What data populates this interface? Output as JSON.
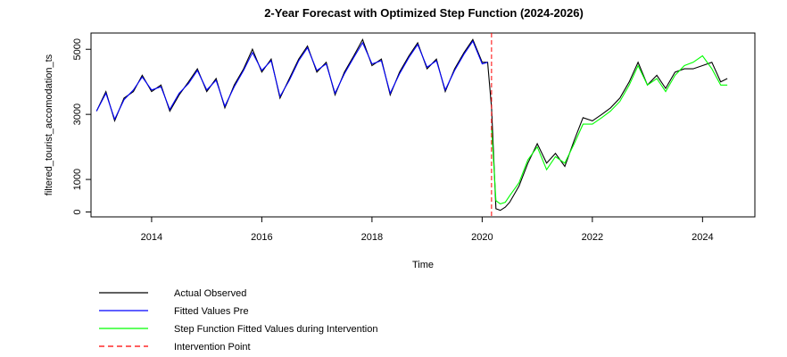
{
  "chart_data": {
    "type": "line",
    "title": "2-Year Forecast with Optimized Step Function (2024-2026)",
    "xlabel": "Time",
    "ylabel": "filtered_tourist_accomodation_ts",
    "xlim": [
      2012.9,
      2024.95
    ],
    "ylim": [
      -150,
      5500
    ],
    "x_ticks": [
      2014,
      2016,
      2018,
      2020,
      2022,
      2024
    ],
    "y_ticks": [
      0,
      1000,
      3000,
      5000
    ],
    "intervention_x": 2020.17,
    "colors": {
      "actual": "#000000",
      "fitted_pre": "#0000ff",
      "step": "#00ff00",
      "intervention": "#ff0000"
    },
    "legend": [
      {
        "key": "actual",
        "label": "Actual Observed"
      },
      {
        "key": "fitted_pre",
        "label": "Fitted Values Pre"
      },
      {
        "key": "step",
        "label": "Step Function Fitted Values during Intervention"
      },
      {
        "key": "intervention",
        "label": "Intervention Point"
      }
    ],
    "series": [
      {
        "key": "actual",
        "x": [
          2013.0,
          2013.17,
          2013.33,
          2013.5,
          2013.67,
          2013.83,
          2014.0,
          2014.17,
          2014.33,
          2014.5,
          2014.67,
          2014.83,
          2015.0,
          2015.17,
          2015.33,
          2015.5,
          2015.67,
          2015.83,
          2016.0,
          2016.17,
          2016.33,
          2016.5,
          2016.67,
          2016.83,
          2017.0,
          2017.17,
          2017.33,
          2017.5,
          2017.67,
          2017.83,
          2018.0,
          2018.17,
          2018.33,
          2018.5,
          2018.67,
          2018.83,
          2019.0,
          2019.17,
          2019.33,
          2019.5,
          2019.67,
          2019.83,
          2020.0,
          2020.1,
          2020.17,
          2020.25,
          2020.33,
          2020.42,
          2020.5,
          2020.67,
          2020.83,
          2021.0,
          2021.17,
          2021.33,
          2021.5,
          2021.67,
          2021.83,
          2022.0,
          2022.17,
          2022.33,
          2022.5,
          2022.67,
          2022.83,
          2023.0,
          2023.17,
          2023.33,
          2023.5,
          2023.67,
          2023.83,
          2024.0,
          2024.17,
          2024.33,
          2024.45
        ],
        "y": [
          3100,
          3700,
          2800,
          3500,
          3700,
          4200,
          3700,
          3900,
          3100,
          3600,
          4000,
          4400,
          3700,
          4100,
          3200,
          3900,
          4400,
          5000,
          4300,
          4700,
          3500,
          4100,
          4700,
          5100,
          4300,
          4600,
          3600,
          4300,
          4800,
          5300,
          4500,
          4700,
          3600,
          4300,
          4800,
          5200,
          4400,
          4700,
          3700,
          4400,
          4900,
          5300,
          4600,
          4600,
          3200,
          100,
          50,
          150,
          300,
          800,
          1500,
          2100,
          1500,
          1800,
          1400,
          2200,
          2900,
          2800,
          3000,
          3200,
          3500,
          4000,
          4600,
          3900,
          4200,
          3800,
          4300,
          4400,
          4400,
          4500,
          4600,
          4000,
          4100
        ]
      },
      {
        "key": "fitted_pre",
        "x": [
          2013.0,
          2013.17,
          2013.33,
          2013.5,
          2013.67,
          2013.83,
          2014.0,
          2014.17,
          2014.33,
          2014.5,
          2014.67,
          2014.83,
          2015.0,
          2015.17,
          2015.33,
          2015.5,
          2015.67,
          2015.83,
          2016.0,
          2016.17,
          2016.33,
          2016.5,
          2016.67,
          2016.83,
          2017.0,
          2017.17,
          2017.33,
          2017.5,
          2017.67,
          2017.83,
          2018.0,
          2018.17,
          2018.33,
          2018.5,
          2018.67,
          2018.83,
          2019.0,
          2019.17,
          2019.33,
          2019.5,
          2019.67,
          2019.83,
          2020.0,
          2020.1
        ],
        "y": [
          3100,
          3650,
          2850,
          3450,
          3750,
          4150,
          3750,
          3850,
          3150,
          3650,
          3950,
          4350,
          3750,
          4050,
          3250,
          3850,
          4350,
          4900,
          4350,
          4650,
          3550,
          4050,
          4650,
          5050,
          4350,
          4550,
          3650,
          4250,
          4750,
          5200,
          4550,
          4650,
          3650,
          4250,
          4750,
          5150,
          4450,
          4650,
          3750,
          4350,
          4850,
          5250,
          4550,
          4600
        ]
      },
      {
        "key": "step",
        "x": [
          2020.17,
          2020.25,
          2020.33,
          2020.42,
          2020.5,
          2020.67,
          2020.83,
          2021.0,
          2021.17,
          2021.33,
          2021.5,
          2021.67,
          2021.83,
          2022.0,
          2022.17,
          2022.33,
          2022.5,
          2022.67,
          2022.83,
          2023.0,
          2023.17,
          2023.33,
          2023.5,
          2023.67,
          2023.83,
          2024.0,
          2024.17,
          2024.33,
          2024.45
        ],
        "y": [
          2600,
          350,
          250,
          300,
          500,
          900,
          1600,
          2000,
          1300,
          1700,
          1500,
          2100,
          2700,
          2700,
          2900,
          3100,
          3400,
          3900,
          4500,
          3900,
          4100,
          3700,
          4200,
          4500,
          4600,
          4800,
          4400,
          3900,
          3900
        ]
      }
    ]
  }
}
